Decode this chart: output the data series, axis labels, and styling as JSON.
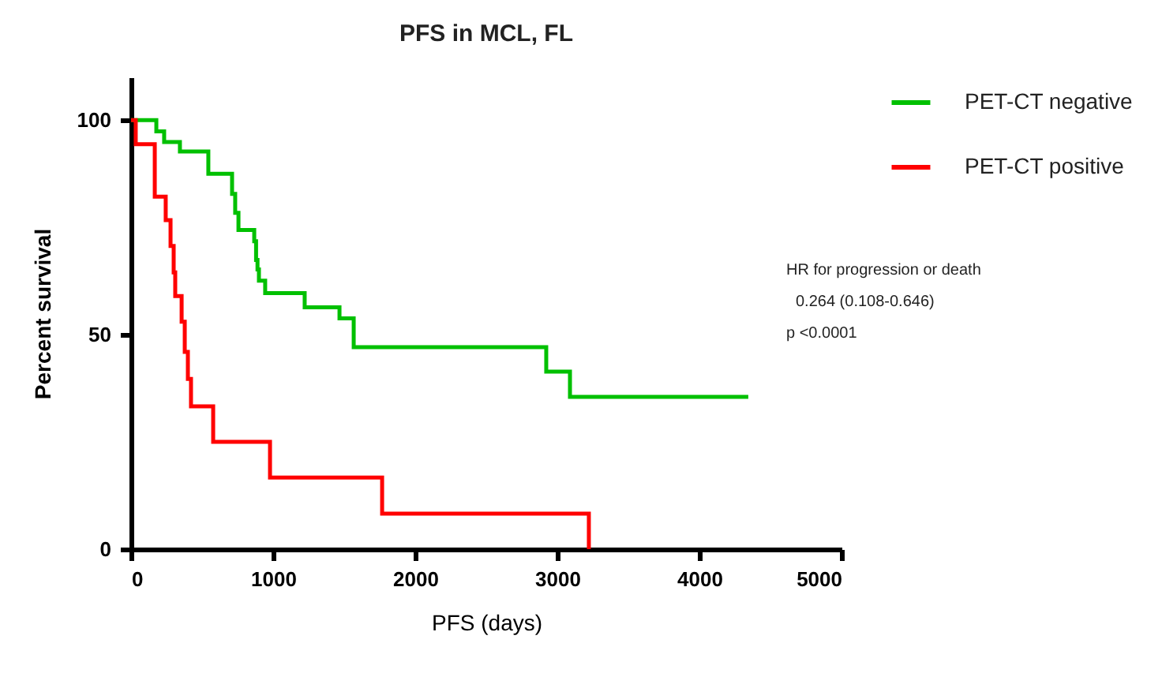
{
  "chart_data": {
    "type": "step",
    "title": "PFS in MCL, FL",
    "xlabel": "PFS (days)",
    "ylabel": "Percent survival",
    "xlim": [
      0,
      5000
    ],
    "xticks": [
      0,
      1000,
      2000,
      3000,
      4000,
      5000
    ],
    "ylim": [
      0,
      110
    ],
    "yticks": [
      0,
      50,
      100
    ],
    "grid": false,
    "legend": "top right",
    "marker": "none",
    "line_style": "solid",
    "series": [
      {
        "name": "PET-CT negative",
        "color": "#00c000",
        "x": [
          0,
          33,
          122,
          178,
          233,
          344,
          544,
          578,
          711,
          733,
          756,
          867,
          880,
          890,
          900,
          944,
          1167,
          1222,
          1467,
          1567,
          1800,
          1844,
          1900,
          2200,
          2378,
          2533,
          2822,
          2922,
          3089,
          3189,
          4156,
          4222,
          4344
        ],
        "values": [
          100,
          100,
          100,
          97.4,
          94.9,
          92.7,
          87.5,
          87.5,
          82.8,
          78.4,
          74.4,
          71.8,
          67.4,
          65.2,
          62.6,
          59.7,
          59.7,
          56.4,
          53.8,
          47.1,
          47.1,
          47.1,
          47.1,
          47.1,
          47.1,
          47.1,
          47.1,
          41.4,
          35.5,
          35.5,
          35.5,
          35.5,
          35.5
        ]
      },
      {
        "name": "PET-CT positive",
        "color": "#ff0000",
        "x": [
          0,
          33,
          167,
          244,
          278,
          300,
          311,
          356,
          378,
          400,
          422,
          544,
          578,
          978,
          1767,
          3222
        ],
        "values": [
          100,
          94.4,
          82.2,
          76.7,
          70.7,
          64.5,
          59,
          53,
          46,
          39.7,
          33.3,
          33.3,
          25,
          16.7,
          8.3,
          0
        ]
      }
    ],
    "annotations": [
      "HR for progression or death",
      "0.264 (0.108-0.646)",
      "p <0.0001"
    ]
  }
}
